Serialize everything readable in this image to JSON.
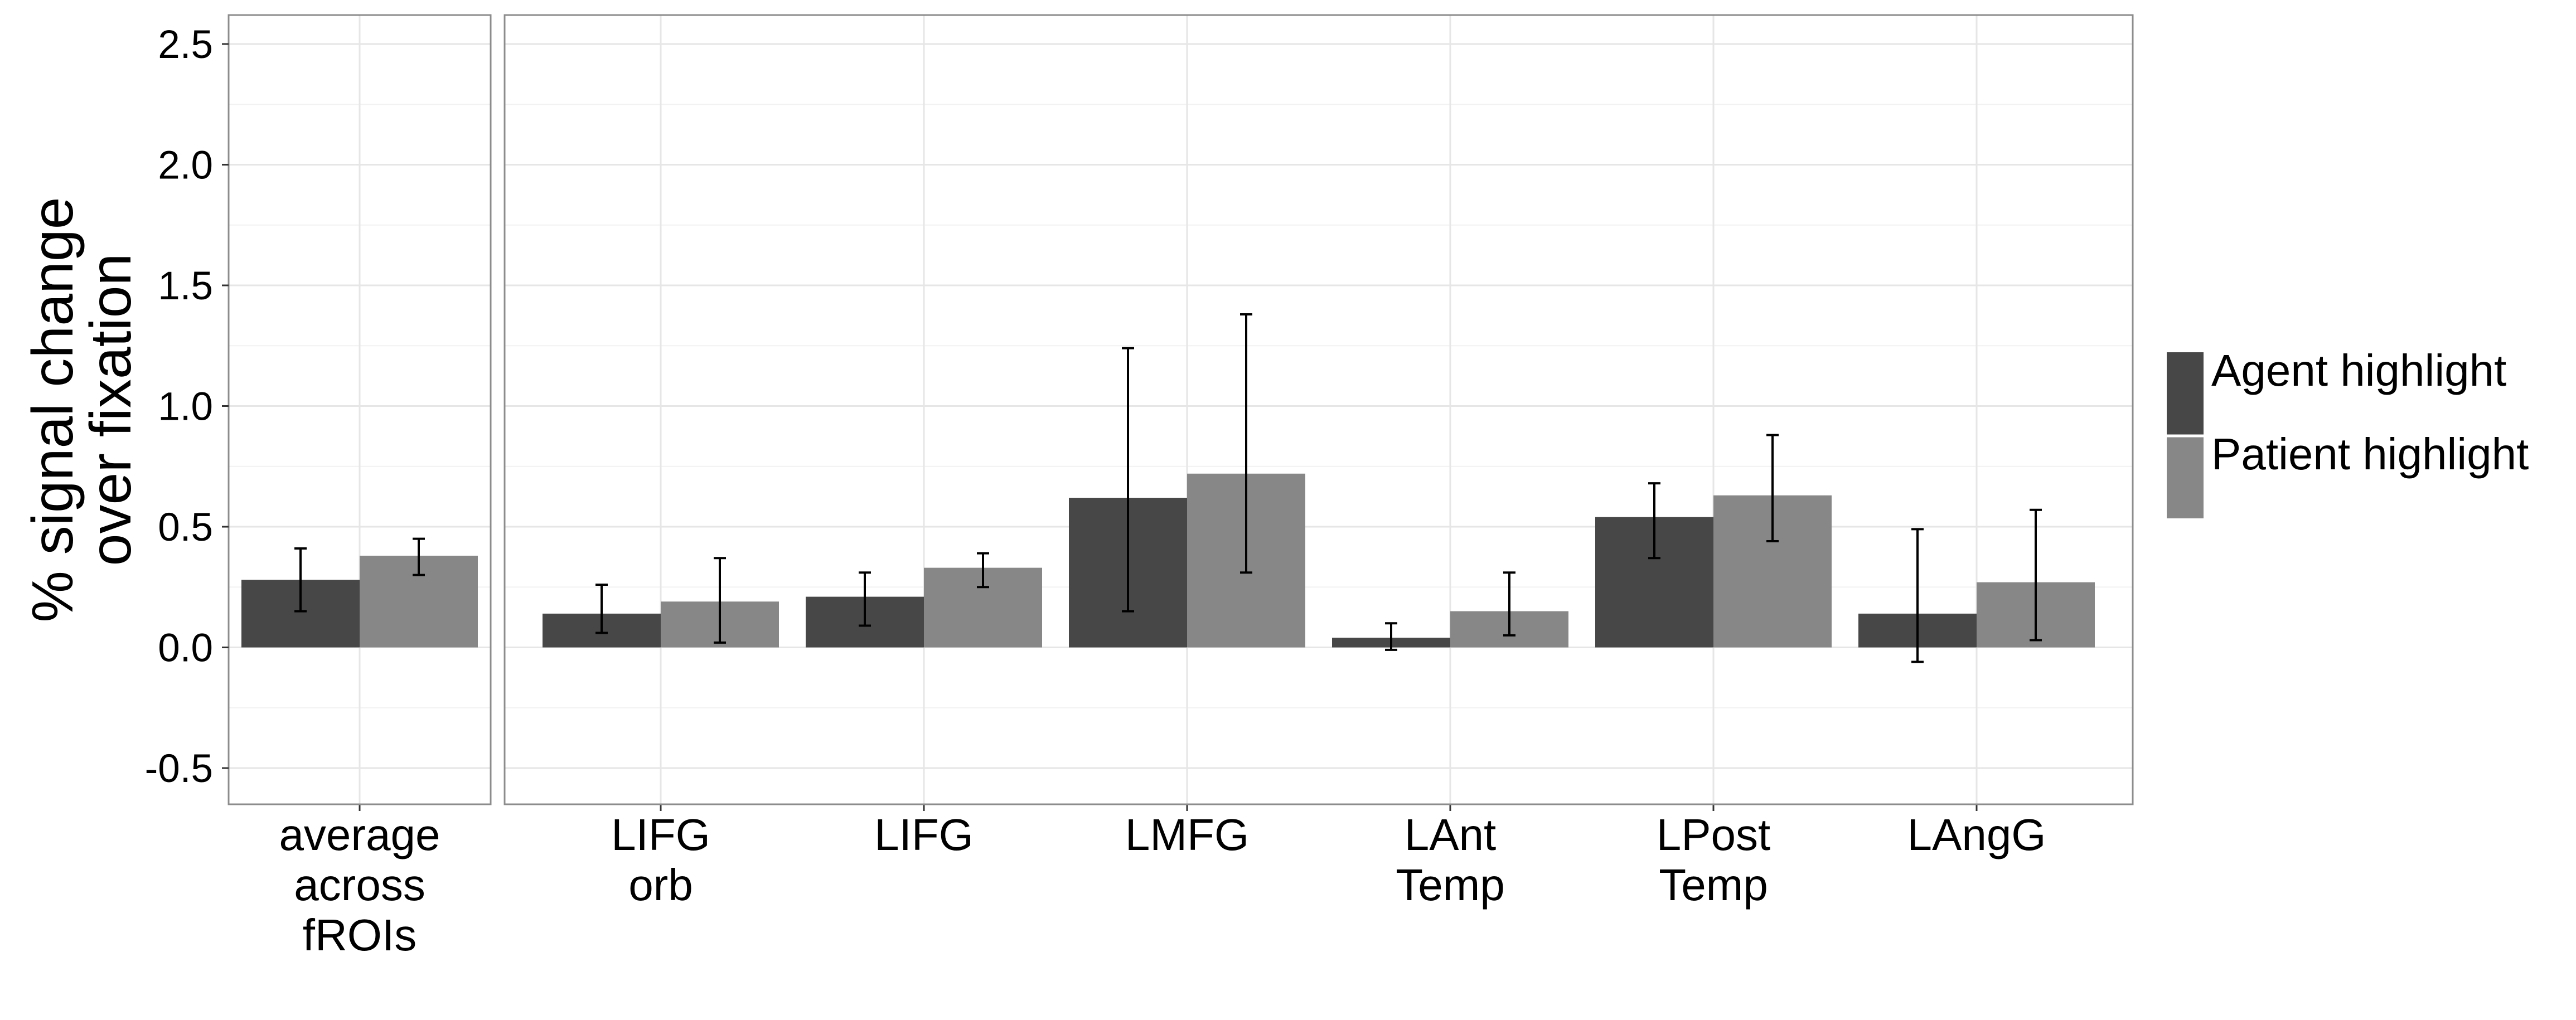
{
  "chart_data": {
    "type": "bar",
    "title": "",
    "xlabel": "",
    "ylabel": [
      "% signal change",
      "over fixation"
    ],
    "ylim": [
      -0.65,
      2.62
    ],
    "yticks": [
      "-0.5",
      "0.0",
      "0.5",
      "1.0",
      "1.5",
      "2.0",
      "2.5"
    ],
    "ytick_values": [
      -0.5,
      0.0,
      0.5,
      1.0,
      1.5,
      2.0,
      2.5
    ],
    "grid": true,
    "legend_position": "right",
    "series": [
      {
        "name": "Agent highlight",
        "color": "#474747"
      },
      {
        "name": "Patient highlight",
        "color": "#878787"
      }
    ],
    "panels": [
      {
        "categories": [
          {
            "label": [
              "average",
              "across",
              "fROIs"
            ],
            "values": [
              0.28,
              0.38
            ],
            "errors": [
              [
                0.15,
                0.41
              ],
              [
                0.3,
                0.45
              ]
            ]
          }
        ]
      },
      {
        "categories": [
          {
            "label": [
              "LIFG",
              "orb"
            ],
            "values": [
              0.14,
              0.19
            ],
            "errors": [
              [
                0.06,
                0.26
              ],
              [
                0.02,
                0.37
              ]
            ]
          },
          {
            "label": [
              "LIFG"
            ],
            "values": [
              0.21,
              0.33
            ],
            "errors": [
              [
                0.09,
                0.31
              ],
              [
                0.25,
                0.39
              ]
            ]
          },
          {
            "label": [
              "LMFG"
            ],
            "values": [
              0.62,
              0.72
            ],
            "errors": [
              [
                0.15,
                1.24
              ],
              [
                0.31,
                1.38
              ]
            ]
          },
          {
            "label": [
              "LAnt",
              "Temp"
            ],
            "values": [
              0.04,
              0.15
            ],
            "errors": [
              [
                -0.01,
                0.1
              ],
              [
                0.05,
                0.31
              ]
            ]
          },
          {
            "label": [
              "LPost",
              "Temp"
            ],
            "values": [
              0.54,
              0.63
            ],
            "errors": [
              [
                0.37,
                0.68
              ],
              [
                0.44,
                0.88
              ]
            ]
          },
          {
            "label": [
              "LAngG"
            ],
            "values": [
              0.14,
              0.27
            ],
            "errors": [
              [
                -0.06,
                0.49
              ],
              [
                0.03,
                0.57
              ]
            ]
          }
        ]
      }
    ]
  }
}
